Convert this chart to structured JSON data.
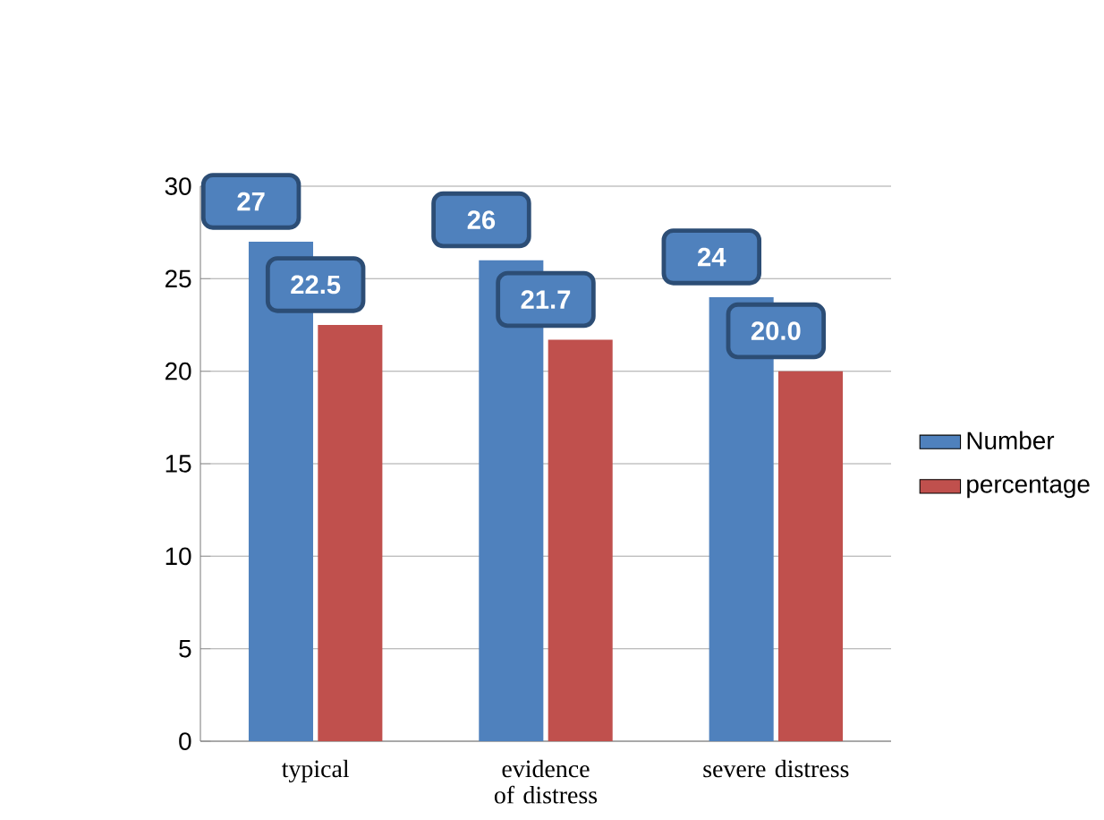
{
  "chart_data": {
    "type": "bar",
    "categories": [
      "typical",
      "evidence of distress",
      "severe distress"
    ],
    "series": [
      {
        "name": "Number",
        "color": "#4f81bd",
        "values": [
          27,
          26,
          24
        ],
        "value_labels": [
          "27",
          "26",
          "24"
        ]
      },
      {
        "name": "percentage",
        "color": "#c0504d",
        "values": [
          22.5,
          21.7,
          20.0
        ],
        "value_labels": [
          "22.5",
          "21.7",
          "20.0"
        ]
      }
    ],
    "ylim": [
      0,
      30
    ],
    "yticks": [
      0,
      5,
      10,
      15,
      20,
      25,
      30
    ],
    "grid": "y",
    "legend": "right"
  }
}
